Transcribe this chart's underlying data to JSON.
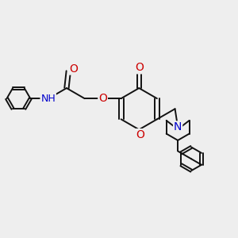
{
  "bg_color": "#eeeeee",
  "bond_color": "#111111",
  "bond_width": 1.4,
  "atom_colors": {
    "O": "#cc0000",
    "N": "#0000cc",
    "C": "#111111"
  },
  "font_size": 9,
  "fig_size": [
    3.0,
    3.0
  ],
  "dpi": 100,
  "xlim": [
    0,
    10
  ],
  "ylim": [
    0,
    10
  ]
}
